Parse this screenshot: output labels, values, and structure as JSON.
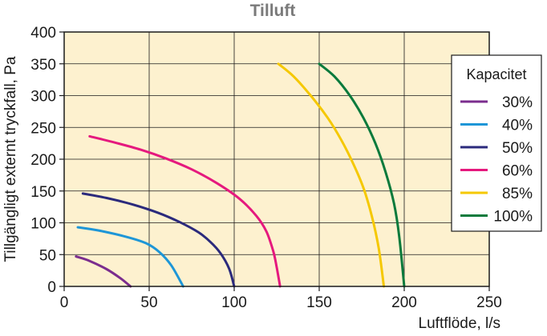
{
  "chart_data": {
    "type": "line",
    "title": "Tilluft",
    "xlabel": "Luftflöde, l/s",
    "ylabel": "Tillgängligt externt tryckfall, Pa",
    "xlim": [
      0,
      250
    ],
    "ylim": [
      0,
      400
    ],
    "xticks": [
      0,
      50,
      100,
      150,
      200,
      250
    ],
    "yticks": [
      0,
      50,
      100,
      150,
      200,
      250,
      300,
      350,
      400
    ],
    "grid": true,
    "legend_title": "Kapacitet",
    "legend_position": "right",
    "series": [
      {
        "name": "30%",
        "color": "#7b2d8e",
        "x": [
          7,
          15,
          25,
          33,
          39
        ],
        "y": [
          47,
          40,
          27,
          13,
          0
        ]
      },
      {
        "name": "40%",
        "color": "#1e96d7",
        "x": [
          8,
          20,
          35,
          48,
          56,
          63,
          70
        ],
        "y": [
          93,
          88,
          79,
          68,
          54,
          33,
          0
        ]
      },
      {
        "name": "50%",
        "color": "#2b2a7c",
        "x": [
          11,
          25,
          40,
          55,
          68,
          79,
          86,
          92,
          97,
          100
        ],
        "y": [
          146,
          139,
          129,
          116,
          101,
          85,
          70,
          52,
          28,
          0
        ]
      },
      {
        "name": "60%",
        "color": "#e5197e",
        "x": [
          15,
          30,
          45,
          60,
          75,
          90,
          103,
          113,
          119,
          123,
          125,
          127
        ],
        "y": [
          236,
          226,
          215,
          201,
          184,
          162,
          138,
          111,
          86,
          55,
          30,
          0
        ]
      },
      {
        "name": "85%",
        "color": "#f5c800",
        "x": [
          126,
          135,
          145,
          155,
          163,
          170,
          176,
          181,
          185,
          188
        ],
        "y": [
          350,
          330,
          300,
          265,
          230,
          193,
          155,
          110,
          60,
          0
        ]
      },
      {
        "name": "100%",
        "color": "#0a7a3c",
        "x": [
          150,
          159,
          168,
          176,
          183,
          189,
          194,
          197,
          200
        ],
        "y": [
          350,
          330,
          300,
          265,
          225,
          180,
          130,
          80,
          0
        ]
      }
    ]
  }
}
